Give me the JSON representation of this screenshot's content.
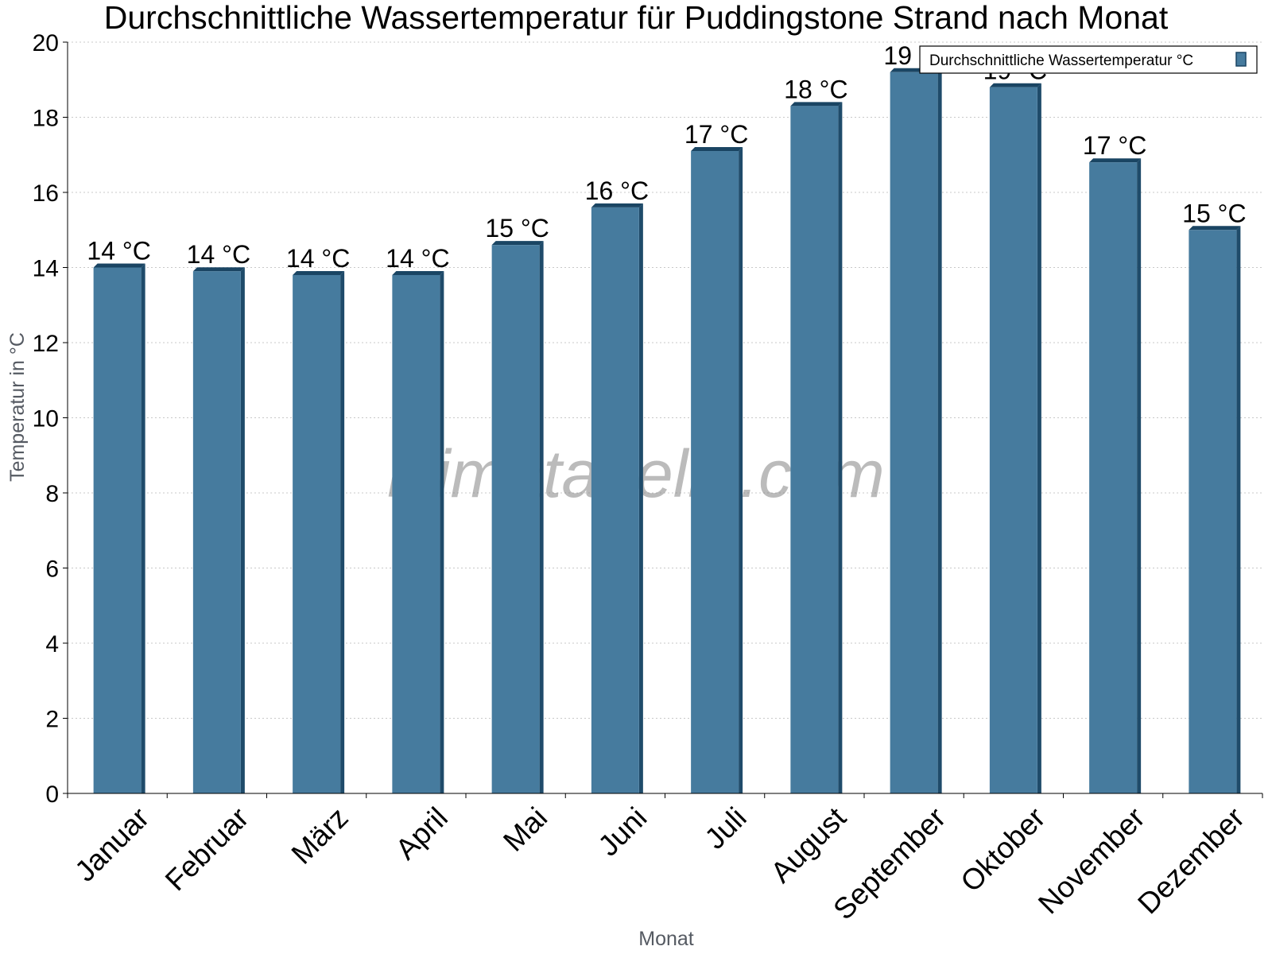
{
  "chart_data": {
    "type": "bar",
    "title": "Durchschnittliche Wassertemperatur für Puddingstone Strand nach Monat",
    "xlabel": "Monat",
    "ylabel": "Temperatur in °C",
    "categories": [
      "Januar",
      "Februar",
      "März",
      "April",
      "Mai",
      "Juni",
      "Juli",
      "August",
      "September",
      "Oktober",
      "November",
      "Dezember"
    ],
    "series": [
      {
        "name": "Durchschnittliche Wassertemperatur °C",
        "values": [
          14.0,
          13.9,
          13.8,
          13.8,
          14.6,
          15.6,
          17.1,
          18.3,
          19.2,
          18.8,
          16.8,
          15.0
        ],
        "data_labels": [
          "14 °C",
          "14 °C",
          "14 °C",
          "14 °C",
          "15 °C",
          "16 °C",
          "17 °C",
          "18 °C",
          "19 °C",
          "19 °C",
          "17 °C",
          "15 °C"
        ]
      }
    ],
    "ylim": [
      0,
      20
    ],
    "yticks": [
      0,
      2,
      4,
      6,
      8,
      10,
      12,
      14,
      16,
      18,
      20
    ],
    "grid": true,
    "legend_position": "top-right",
    "watermark": "klimatabelle.com",
    "colors": {
      "bar_face": "#467b9e",
      "bar_side": "#1f4b6a",
      "bar_top": "#1a4563",
      "axis_title": "#555a62",
      "grid": "#c8c8c8"
    }
  }
}
